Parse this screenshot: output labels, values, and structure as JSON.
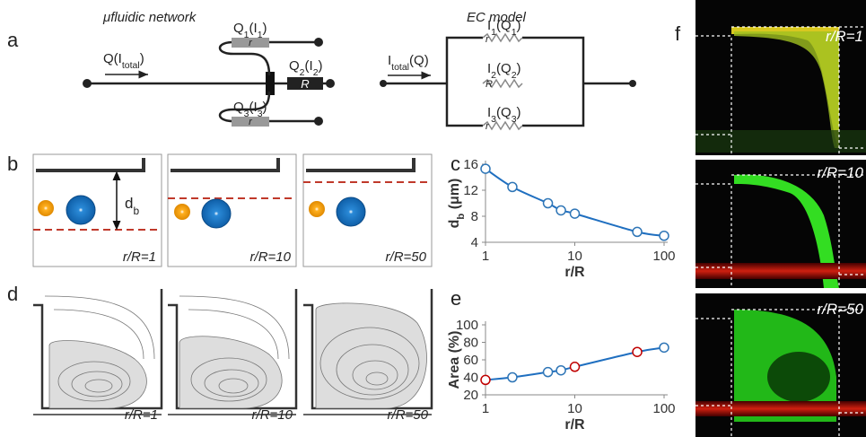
{
  "panel_labels": [
    "a",
    "b",
    "c",
    "d",
    "e",
    "f"
  ],
  "network": {
    "title": "μfluidic network",
    "inlet": [
      "Q(I",
      "total",
      ")"
    ],
    "outlets": [
      [
        "Q",
        "1",
        "(I",
        "1",
        ")"
      ],
      [
        "Q",
        "2",
        "(I",
        "2",
        ")"
      ],
      [
        "Q",
        "3",
        "(I",
        "3",
        ")"
      ]
    ],
    "resistors": [
      "r",
      "R",
      "r"
    ]
  },
  "ec_model": {
    "title": "EC model",
    "inlet": [
      "I",
      "total",
      "(Q)"
    ],
    "branches": [
      [
        "I",
        "1",
        "(Q",
        "1",
        ")"
      ],
      [
        "I",
        "2",
        "(Q",
        "2",
        ")"
      ],
      [
        "I",
        "3",
        "(Q",
        "3",
        ")"
      ]
    ],
    "resistors": [
      "r",
      "R",
      "r"
    ]
  },
  "panel_b": {
    "distance_label": [
      "d",
      "b"
    ],
    "captions": [
      "r/R=1",
      "r/R=10",
      "r/R=50"
    ]
  },
  "panel_d": {
    "captions": [
      "r/R=1",
      "r/R=10",
      "r/R=50"
    ]
  },
  "panel_f": {
    "captions": [
      "r/R=1",
      "r/R=10",
      "r/R=50"
    ]
  },
  "chart_data": [
    {
      "type": "scatter",
      "xlabel": "r/R",
      "ylabel": [
        "d",
        "b",
        " (μm)"
      ],
      "x": [
        1,
        2,
        5,
        7,
        10,
        50,
        100
      ],
      "values": [
        15.3,
        12.5,
        10,
        8.9,
        8.4,
        5.6,
        5
      ],
      "point_colors": [
        "#2e75b6",
        "#2e75b6",
        "#2e75b6",
        "#2e75b6",
        "#2e75b6",
        "#2e75b6",
        "#2e75b6"
      ],
      "color": "#1f6fc0",
      "xscale": "log",
      "xlim": [
        1,
        100
      ],
      "xticks": [
        1,
        10,
        100
      ],
      "ylim": [
        4,
        16
      ],
      "yticks": [
        4,
        8,
        12,
        16
      ]
    },
    {
      "type": "scatter",
      "xlabel": "r/R",
      "ylabel": [
        "Area (%)"
      ],
      "x": [
        1,
        2,
        5,
        7,
        10,
        50,
        100
      ],
      "values": [
        37,
        40,
        46,
        48,
        52,
        69,
        74
      ],
      "point_colors": [
        "#c00000",
        "#2e75b6",
        "#2e75b6",
        "#2e75b6",
        "#c00000",
        "#c00000",
        "#2e75b6"
      ],
      "color": "#1f6fc0",
      "xscale": "log",
      "xlim": [
        1,
        100
      ],
      "xticks": [
        1,
        10,
        100
      ],
      "ylim": [
        20,
        100
      ],
      "yticks": [
        20,
        40,
        60,
        80,
        100
      ]
    }
  ]
}
